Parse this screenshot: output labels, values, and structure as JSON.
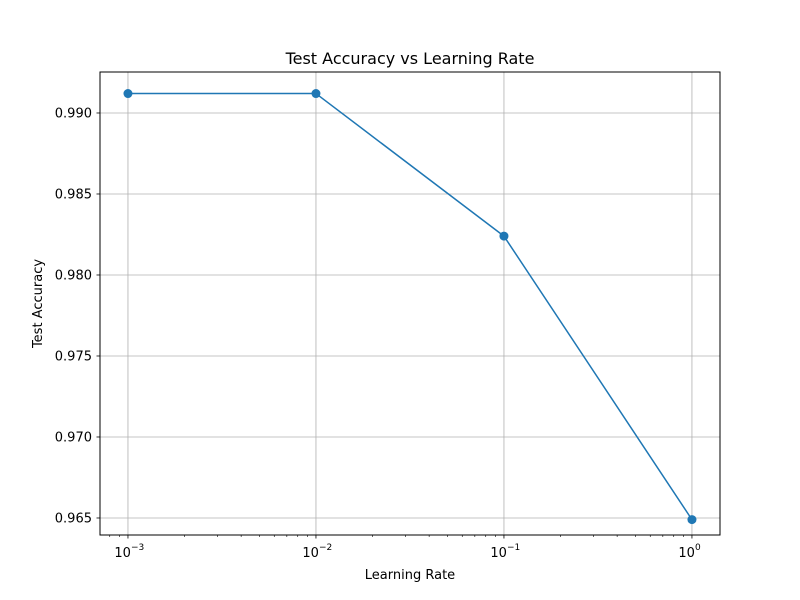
{
  "chart_data": {
    "type": "line",
    "title": "Test Accuracy vs Learning Rate",
    "xlabel": "Learning Rate",
    "ylabel": "Test Accuracy",
    "xscale": "log",
    "xlim": [
      0.00071,
      1.41
    ],
    "ylim": [
      0.96395,
      0.99253
    ],
    "grid": true,
    "x_ticks": [
      {
        "value": 0.001,
        "base": "10",
        "exp": "−3"
      },
      {
        "value": 0.01,
        "base": "10",
        "exp": "−2"
      },
      {
        "value": 0.1,
        "base": "10",
        "exp": "−1"
      },
      {
        "value": 1,
        "base": "10",
        "exp": "0"
      }
    ],
    "y_ticks": [
      "0.965",
      "0.970",
      "0.975",
      "0.980",
      "0.985",
      "0.990"
    ],
    "series": [
      {
        "color": "#1f77b4",
        "marker": "circle",
        "x": [
          0.001,
          0.01,
          0.1,
          1
        ],
        "y": [
          0.9912,
          0.9912,
          0.9824,
          0.9649
        ]
      }
    ]
  }
}
